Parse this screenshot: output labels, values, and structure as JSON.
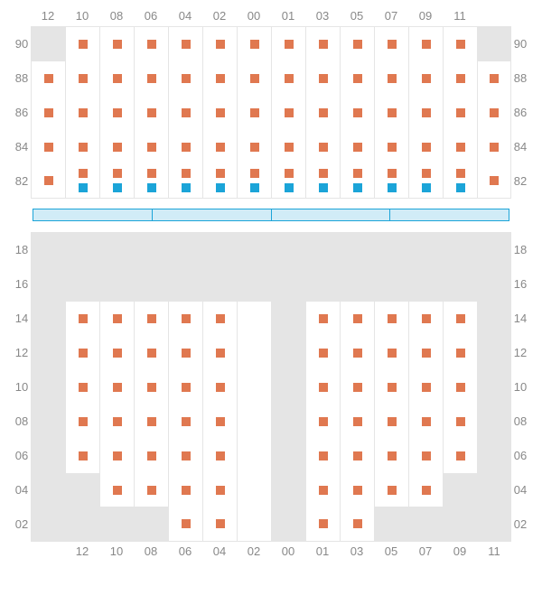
{
  "colors": {
    "seat_orange": "#e07850",
    "seat_blue": "#1ba4d8",
    "inactive_bg": "#e5e5e5",
    "grid_line": "#e5e5e5",
    "stage_fill": "#d1ecf7",
    "stage_border": "#1ba4d8",
    "label_color": "#888888",
    "background": "#ffffff"
  },
  "layout": {
    "cell_size": 38,
    "seat_size": 10,
    "columns": 14
  },
  "col_labels": [
    "12",
    "10",
    "08",
    "06",
    "04",
    "02",
    "00",
    "01",
    "03",
    "05",
    "07",
    "09",
    "11",
    ""
  ],
  "col_labels_bottom": [
    "",
    "12",
    "10",
    "08",
    "06",
    "04",
    "02",
    "00",
    "01",
    "03",
    "05",
    "07",
    "09",
    "11"
  ],
  "top_section": {
    "rows": [
      {
        "label": "90",
        "cells": [
          "i",
          "o",
          "o",
          "o",
          "o",
          "o",
          "o",
          "o",
          "o",
          "o",
          "o",
          "o",
          "o",
          "i"
        ]
      },
      {
        "label": "88",
        "cells": [
          "o",
          "o",
          "o",
          "o",
          "o",
          "o",
          "o",
          "o",
          "o",
          "o",
          "o",
          "o",
          "o",
          "o"
        ]
      },
      {
        "label": "86",
        "cells": [
          "o",
          "o",
          "o",
          "o",
          "o",
          "o",
          "o",
          "o",
          "o",
          "o",
          "o",
          "o",
          "o",
          "o"
        ]
      },
      {
        "label": "84",
        "cells": [
          "o",
          "o",
          "o",
          "o",
          "o",
          "o",
          "o",
          "o",
          "o",
          "o",
          "o",
          "o",
          "o",
          "o"
        ]
      },
      {
        "label": "82",
        "cells": [
          "o",
          "ob",
          "ob",
          "ob",
          "ob",
          "ob",
          "ob",
          "ob",
          "ob",
          "ob",
          "ob",
          "ob",
          "ob",
          "o"
        ]
      }
    ]
  },
  "stage_segments": 4,
  "bottom_section": {
    "rows": [
      {
        "label": "18",
        "cells": [
          "i",
          "i",
          "i",
          "i",
          "i",
          "i",
          "i",
          "i",
          "i",
          "i",
          "i",
          "i",
          "i",
          "i"
        ]
      },
      {
        "label": "16",
        "cells": [
          "i",
          "i",
          "i",
          "i",
          "i",
          "i",
          "i",
          "i",
          "i",
          "i",
          "i",
          "i",
          "i",
          "i"
        ]
      },
      {
        "label": "14",
        "cells": [
          "i",
          "o",
          "o",
          "o",
          "o",
          "o",
          "e",
          "i",
          "o",
          "o",
          "o",
          "o",
          "o",
          "i"
        ]
      },
      {
        "label": "12",
        "cells": [
          "i",
          "o",
          "o",
          "o",
          "o",
          "o",
          "e",
          "i",
          "o",
          "o",
          "o",
          "o",
          "o",
          "i"
        ]
      },
      {
        "label": "10",
        "cells": [
          "i",
          "o",
          "o",
          "o",
          "o",
          "o",
          "e",
          "i",
          "o",
          "o",
          "o",
          "o",
          "o",
          "i"
        ]
      },
      {
        "label": "08",
        "cells": [
          "i",
          "o",
          "o",
          "o",
          "o",
          "o",
          "e",
          "i",
          "o",
          "o",
          "o",
          "o",
          "o",
          "i"
        ]
      },
      {
        "label": "06",
        "cells": [
          "i",
          "o",
          "o",
          "o",
          "o",
          "o",
          "e",
          "i",
          "o",
          "o",
          "o",
          "o",
          "o",
          "i"
        ]
      },
      {
        "label": "04",
        "cells": [
          "i",
          "i",
          "o",
          "o",
          "o",
          "o",
          "e",
          "i",
          "o",
          "o",
          "o",
          "o",
          "i",
          "i"
        ]
      },
      {
        "label": "02",
        "cells": [
          "i",
          "i",
          "i",
          "i",
          "o",
          "o",
          "e",
          "i",
          "o",
          "o",
          "i",
          "i",
          "i",
          "i"
        ]
      }
    ]
  }
}
